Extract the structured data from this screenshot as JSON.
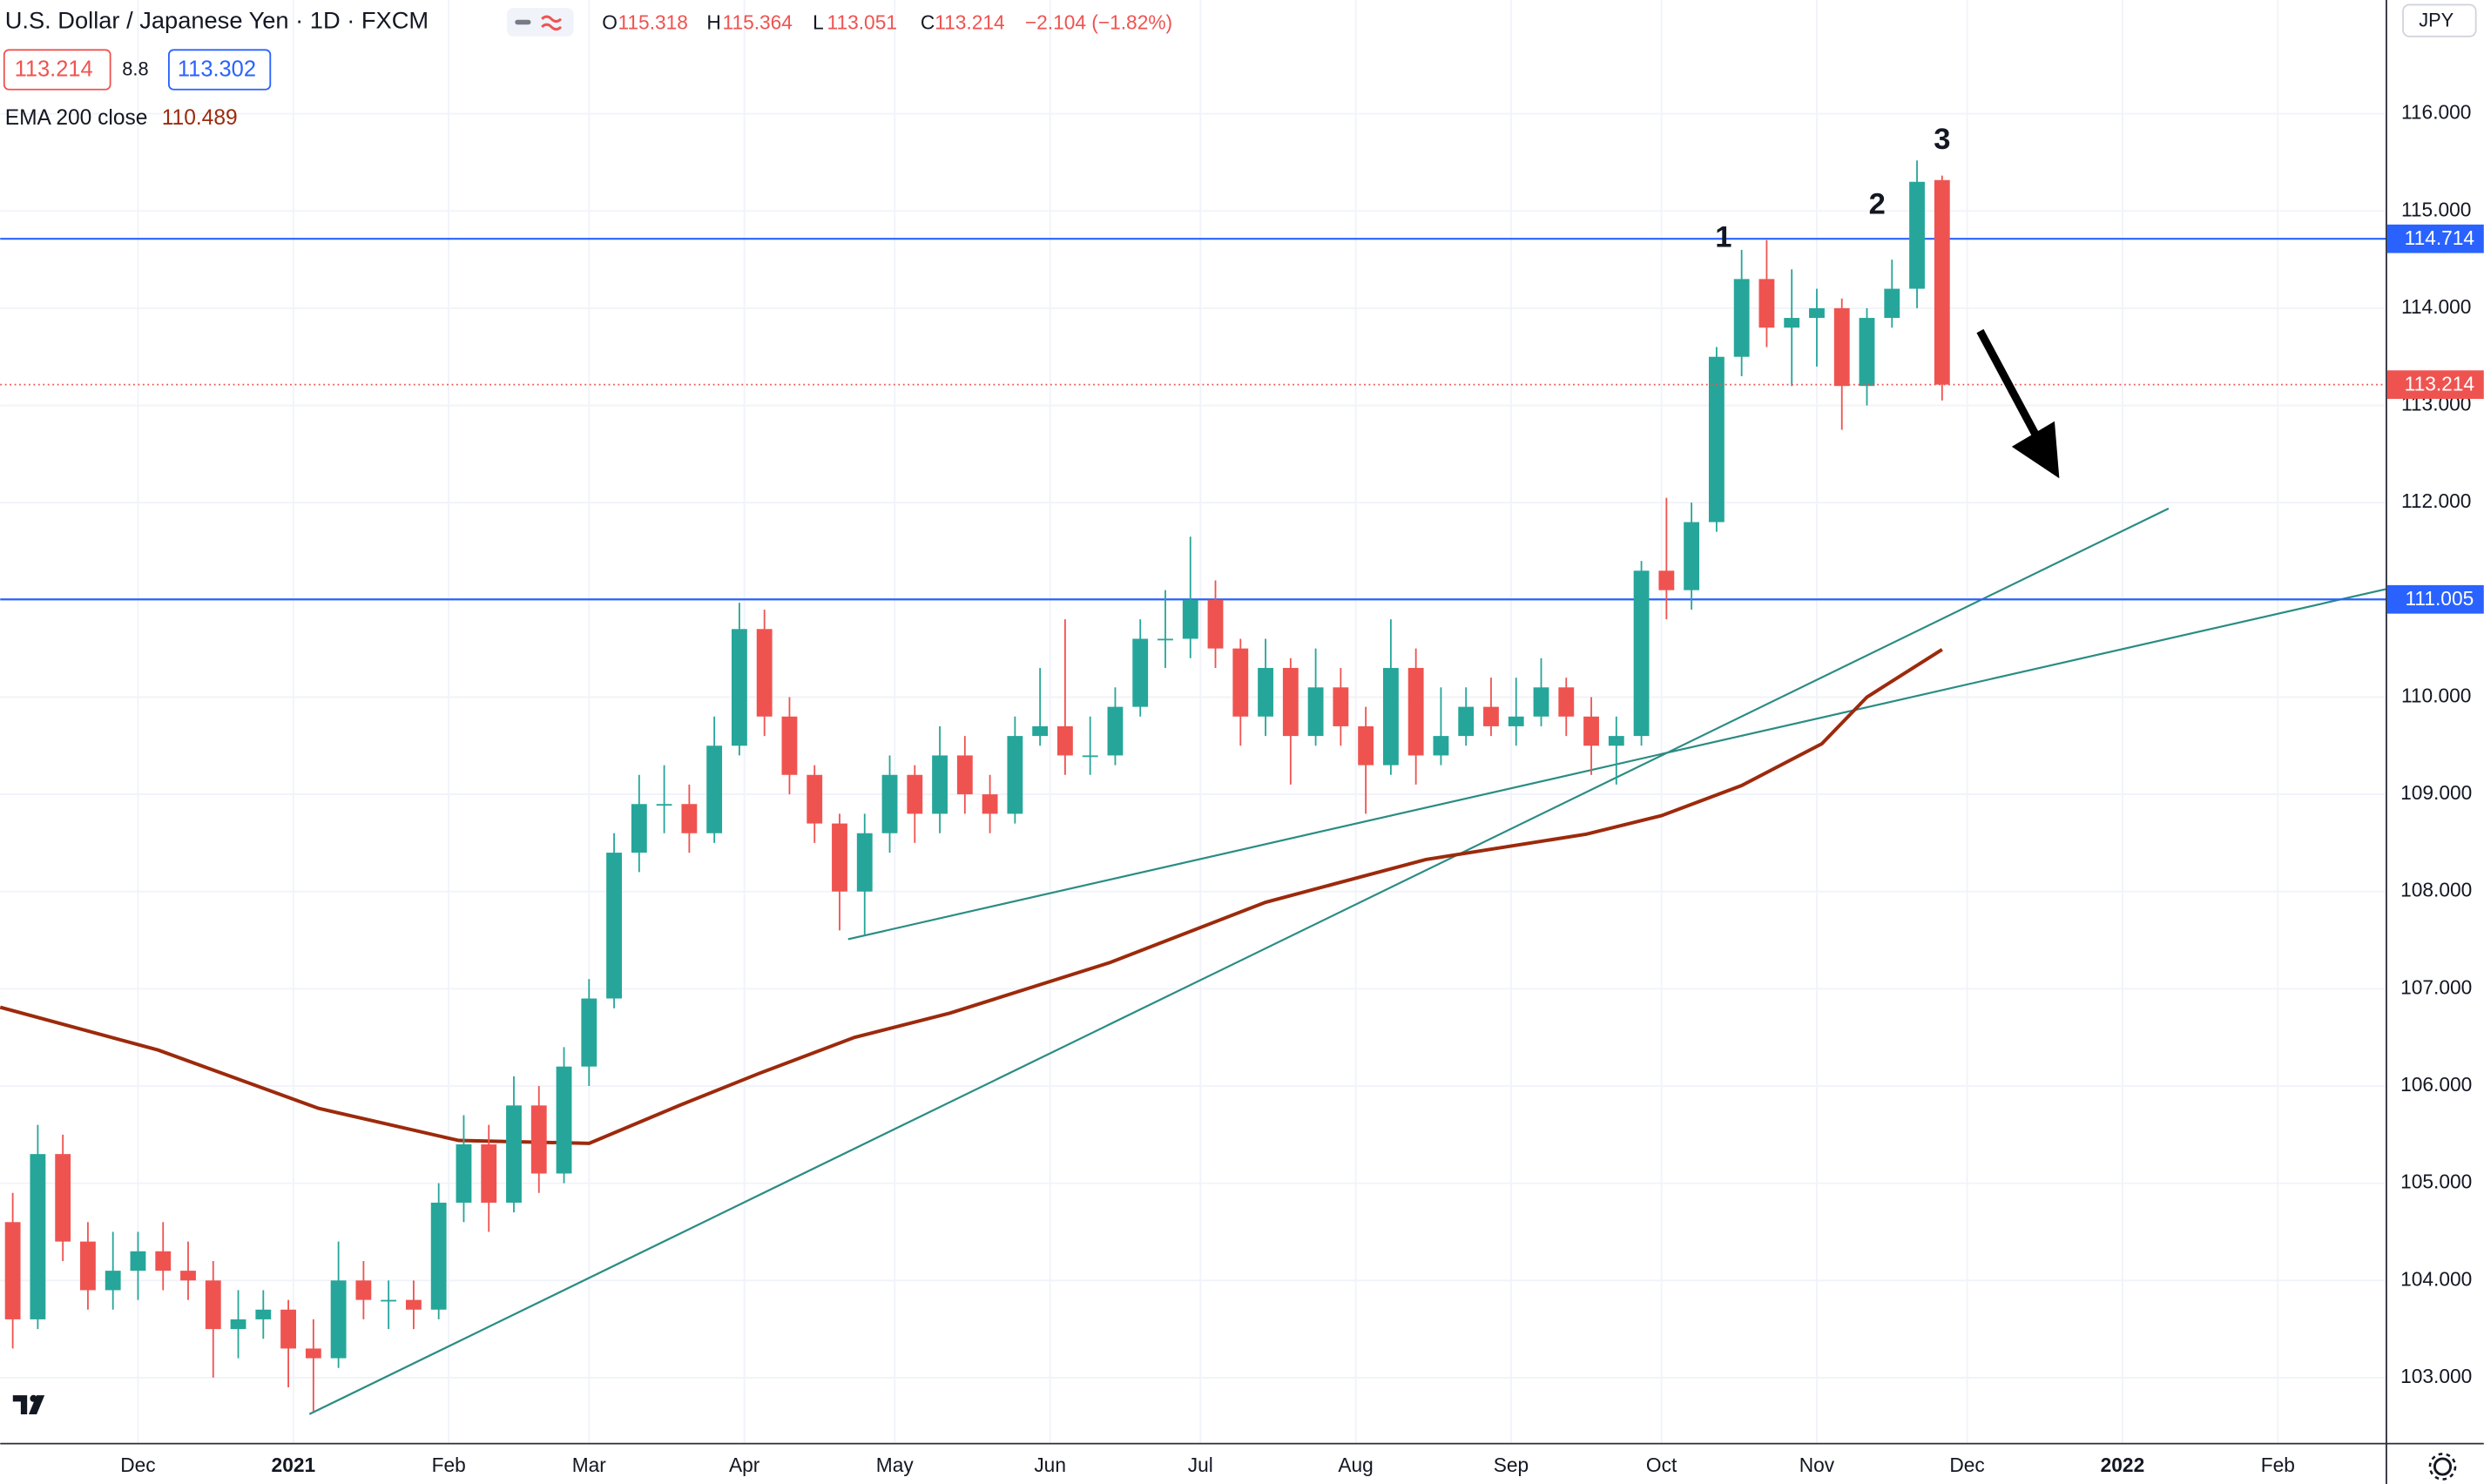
{
  "header": {
    "title": "U.S. Dollar / Japanese Yen · 1D · FXCM",
    "ohlc_labels": [
      "O",
      "H",
      "L",
      "C"
    ],
    "change": "−2.104 (−1.82%)",
    "spread": 8.8,
    "ask": 113.302
  },
  "chart_data": {
    "type": "candlestick",
    "currency": "JPY",
    "x": [
      5,
      10,
      15,
      20,
      25,
      30,
      35,
      40,
      45,
      50,
      55,
      60,
      65,
      70,
      75,
      80,
      85,
      90,
      95,
      100,
      105,
      110,
      115,
      120,
      125,
      130,
      135,
      140,
      145,
      150,
      155,
      160,
      165,
      170,
      175,
      180,
      185,
      190,
      195,
      200,
      205,
      210,
      215,
      220,
      225,
      230,
      235,
      240,
      245,
      250,
      255,
      260,
      265,
      270,
      275,
      280,
      285,
      290,
      295,
      300,
      305,
      310,
      315,
      320,
      325,
      330,
      335,
      340,
      345,
      350,
      355,
      360,
      365,
      370,
      375,
      380,
      385,
      390
    ],
    "ohlc": [
      [
        104.6,
        104.9,
        103.3,
        103.6
      ],
      [
        103.6,
        105.6,
        103.5,
        105.3
      ],
      [
        105.3,
        105.5,
        104.2,
        104.4
      ],
      [
        104.4,
        104.6,
        103.7,
        103.9
      ],
      [
        103.9,
        104.5,
        103.7,
        104.1
      ],
      [
        104.1,
        104.5,
        103.8,
        104.3
      ],
      [
        104.3,
        104.6,
        103.9,
        104.1
      ],
      [
        104.1,
        104.4,
        103.8,
        104.0
      ],
      [
        104.0,
        104.2,
        103.0,
        103.5
      ],
      [
        103.5,
        103.9,
        103.2,
        103.6
      ],
      [
        103.6,
        103.9,
        103.4,
        103.7
      ],
      [
        103.7,
        103.8,
        102.9,
        103.3
      ],
      [
        103.3,
        103.6,
        102.65,
        103.2
      ],
      [
        103.2,
        104.4,
        103.1,
        104.0
      ],
      [
        104.0,
        104.2,
        103.6,
        103.8
      ],
      [
        103.8,
        104.0,
        103.5,
        103.8
      ],
      [
        103.8,
        104.0,
        103.5,
        103.7
      ],
      [
        103.7,
        105.0,
        103.6,
        104.8
      ],
      [
        104.8,
        105.7,
        104.6,
        105.4
      ],
      [
        105.4,
        105.6,
        104.5,
        104.8
      ],
      [
        104.8,
        106.1,
        104.7,
        105.8
      ],
      [
        105.8,
        106.0,
        104.9,
        105.1
      ],
      [
        105.1,
        106.4,
        105.0,
        106.2
      ],
      [
        106.2,
        107.1,
        106.0,
        106.9
      ],
      [
        106.9,
        108.6,
        106.8,
        108.4
      ],
      [
        108.4,
        109.2,
        108.2,
        108.9
      ],
      [
        108.9,
        109.3,
        108.6,
        108.9
      ],
      [
        108.9,
        109.1,
        108.4,
        108.6
      ],
      [
        108.6,
        109.8,
        108.5,
        109.5
      ],
      [
        109.5,
        110.97,
        109.4,
        110.7
      ],
      [
        110.7,
        110.9,
        109.6,
        109.8
      ],
      [
        109.8,
        110.0,
        109.0,
        109.2
      ],
      [
        109.2,
        109.3,
        108.5,
        108.7
      ],
      [
        108.7,
        108.8,
        107.6,
        108.0
      ],
      [
        108.0,
        108.8,
        107.55,
        108.6
      ],
      [
        108.6,
        109.4,
        108.4,
        109.2
      ],
      [
        109.2,
        109.3,
        108.5,
        108.8
      ],
      [
        108.8,
        109.7,
        108.6,
        109.4
      ],
      [
        109.4,
        109.6,
        108.8,
        109.0
      ],
      [
        109.0,
        109.2,
        108.6,
        108.8
      ],
      [
        108.8,
        109.8,
        108.7,
        109.6
      ],
      [
        109.6,
        110.3,
        109.5,
        109.7
      ],
      [
        109.7,
        110.8,
        109.2,
        109.4
      ],
      [
        109.4,
        109.8,
        109.2,
        109.4
      ],
      [
        109.4,
        110.1,
        109.3,
        109.9
      ],
      [
        109.9,
        110.8,
        109.8,
        110.6
      ],
      [
        110.6,
        111.1,
        110.3,
        110.6
      ],
      [
        110.6,
        111.65,
        110.4,
        111.0
      ],
      [
        111.0,
        111.2,
        110.3,
        110.5
      ],
      [
        110.5,
        110.6,
        109.5,
        109.8
      ],
      [
        109.8,
        110.6,
        109.6,
        110.3
      ],
      [
        110.3,
        110.4,
        109.1,
        109.6
      ],
      [
        109.6,
        110.5,
        109.5,
        110.1
      ],
      [
        110.1,
        110.3,
        109.5,
        109.7
      ],
      [
        109.7,
        109.9,
        108.8,
        109.3
      ],
      [
        109.3,
        110.8,
        109.2,
        110.3
      ],
      [
        110.3,
        110.5,
        109.1,
        109.4
      ],
      [
        109.4,
        110.1,
        109.3,
        109.6
      ],
      [
        109.6,
        110.1,
        109.5,
        109.9
      ],
      [
        109.9,
        110.2,
        109.6,
        109.7
      ],
      [
        109.7,
        110.2,
        109.5,
        109.8
      ],
      [
        109.8,
        110.4,
        109.7,
        110.1
      ],
      [
        110.1,
        110.2,
        109.6,
        109.8
      ],
      [
        109.8,
        110.0,
        109.2,
        109.5
      ],
      [
        109.5,
        109.8,
        109.1,
        109.6
      ],
      [
        109.6,
        111.4,
        109.5,
        111.3
      ],
      [
        111.3,
        112.05,
        110.8,
        111.1
      ],
      [
        111.1,
        112.0,
        110.9,
        111.8
      ],
      [
        111.8,
        113.6,
        111.7,
        113.5
      ],
      [
        113.5,
        114.6,
        113.3,
        114.3
      ],
      [
        114.3,
        114.7,
        113.6,
        113.8
      ],
      [
        113.8,
        114.4,
        113.2,
        113.9
      ],
      [
        113.9,
        114.2,
        113.4,
        114.0
      ],
      [
        114.0,
        114.1,
        112.75,
        113.2
      ],
      [
        113.2,
        114.0,
        113.0,
        113.9
      ],
      [
        113.9,
        114.5,
        113.8,
        114.2
      ],
      [
        114.2,
        115.52,
        114.0,
        115.3
      ],
      [
        115.318,
        115.364,
        113.051,
        113.214
      ]
    ],
    "up_color": "#26a69a",
    "down_color": "#ef5350",
    "xlim": [
      2.5,
      478.5
    ],
    "xticks": [
      {
        "value": 30,
        "label": "Dec"
      },
      {
        "value": 61,
        "label": "2021"
      },
      {
        "value": 92,
        "label": "Feb"
      },
      {
        "value": 120,
        "label": "Mar"
      },
      {
        "value": 151,
        "label": "Apr"
      },
      {
        "value": 181,
        "label": "May"
      },
      {
        "value": 212,
        "label": "Jun"
      },
      {
        "value": 242,
        "label": "Jul"
      },
      {
        "value": 273,
        "label": "Aug"
      },
      {
        "value": 304,
        "label": "Sep"
      },
      {
        "value": 334,
        "label": "Oct"
      },
      {
        "value": 365,
        "label": "Nov"
      },
      {
        "value": 395,
        "label": "Dec"
      },
      {
        "value": 426,
        "label": "2022"
      },
      {
        "value": 457,
        "label": "Feb"
      }
    ],
    "ylim": [
      102.33,
      117.17
    ],
    "yticks": [
      {
        "value": 103,
        "label": "103.000"
      },
      {
        "value": 104,
        "label": "104.000"
      },
      {
        "value": 105,
        "label": "105.000"
      },
      {
        "value": 106,
        "label": "106.000"
      },
      {
        "value": 107,
        "label": "107.000"
      },
      {
        "value": 108,
        "label": "108.000"
      },
      {
        "value": 109,
        "label": "109.000"
      },
      {
        "value": 110,
        "label": "110.000"
      },
      {
        "value": 111,
        "label": "111.000"
      },
      {
        "value": 112,
        "label": "112.000"
      },
      {
        "value": 113,
        "label": "113.000"
      },
      {
        "value": 114,
        "label": "114.000"
      },
      {
        "value": 115,
        "label": "115.000"
      },
      {
        "value": 116,
        "label": "116.000"
      }
    ],
    "grid": true,
    "ema": {
      "name": "EMA 200 close",
      "color": "#9c2a0c",
      "x": [
        2.5,
        34,
        66,
        94,
        120,
        138,
        154,
        173,
        192,
        224,
        255,
        287,
        319,
        334,
        350,
        366,
        375,
        390
      ],
      "values": [
        106.81,
        106.37,
        105.77,
        105.44,
        105.41,
        105.8,
        106.13,
        106.5,
        106.75,
        107.27,
        107.89,
        108.33,
        108.59,
        108.78,
        109.09,
        109.52,
        110.0,
        110.489
      ]
    },
    "levels": [
      {
        "value": 114.714,
        "color": "#2962ff"
      },
      {
        "value": 111.005,
        "color": "#2962ff"
      }
    ],
    "trendlines": [
      {
        "x": [
          64.2,
          435.2
        ],
        "y": [
          102.625,
          111.94
        ],
        "color": "#2a8c83"
      },
      {
        "x": [
          171.7,
          478.5
        ],
        "y": [
          107.51,
          111.11
        ],
        "color": "#2a8c83"
      }
    ],
    "annotations": [
      {
        "text": "1"
      },
      {
        "text": "2"
      },
      {
        "text": "3"
      }
    ]
  }
}
